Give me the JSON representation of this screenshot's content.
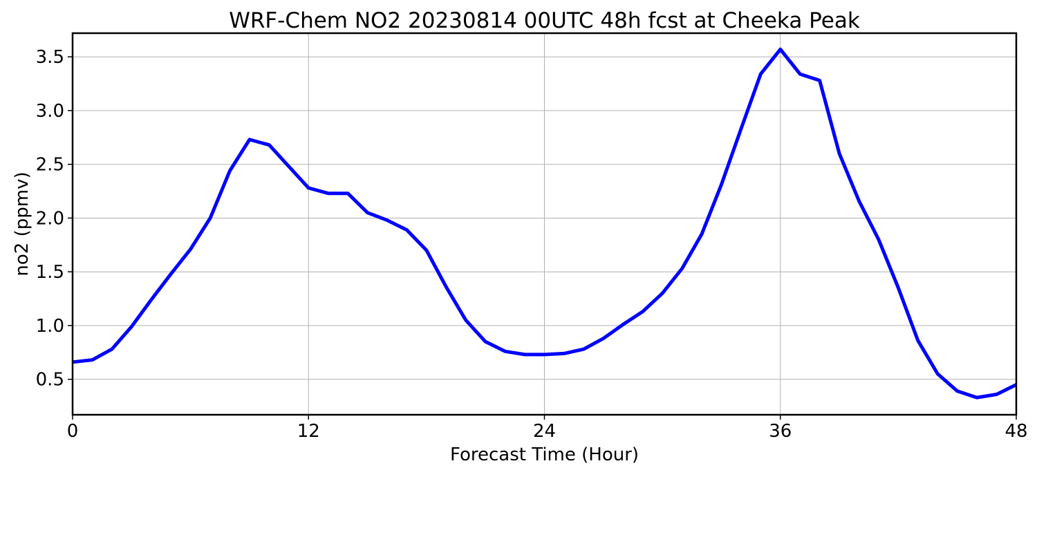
{
  "chart_data": {
    "type": "line",
    "title": "WRF-Chem NO2  20230814 00UTC 48h fcst at Cheeka Peak",
    "xlabel": "Forecast Time (Hour)",
    "ylabel": "no2  (ppmv)",
    "xlim": [
      0,
      48
    ],
    "ylim": [
      0.17,
      3.72
    ],
    "x_ticks": [
      0,
      12,
      24,
      36,
      48
    ],
    "x_tick_labels": [
      "0",
      "12",
      "24",
      "36",
      "48"
    ],
    "y_ticks": [
      0.5,
      1.0,
      1.5,
      2.0,
      2.5,
      3.0,
      3.5
    ],
    "y_tick_labels": [
      "0.5",
      "1.0",
      "1.5",
      "2.0",
      "2.5",
      "3.0",
      "3.5"
    ],
    "grid": true,
    "series": [
      {
        "color": "#0000ff",
        "x": [
          0,
          1,
          2,
          3,
          4,
          5,
          6,
          7,
          8,
          9,
          10,
          11,
          12,
          13,
          14,
          15,
          16,
          17,
          18,
          19,
          20,
          21,
          22,
          23,
          24,
          25,
          26,
          27,
          28,
          29,
          30,
          31,
          32,
          33,
          34,
          35,
          36,
          37,
          38,
          39,
          40,
          41,
          42,
          43,
          44,
          45,
          46,
          47,
          48
        ],
        "values": [
          0.66,
          0.68,
          0.78,
          0.99,
          1.24,
          1.48,
          1.71,
          2.0,
          2.44,
          2.73,
          2.68,
          2.48,
          2.28,
          2.23,
          2.23,
          2.05,
          1.98,
          1.89,
          1.7,
          1.36,
          1.05,
          0.85,
          0.76,
          0.73,
          0.73,
          0.74,
          0.78,
          0.88,
          1.01,
          1.13,
          1.3,
          1.53,
          1.85,
          2.31,
          2.83,
          3.34,
          3.57,
          3.34,
          3.28,
          2.6,
          2.16,
          1.8,
          1.35,
          0.86,
          0.55,
          0.39,
          0.33,
          0.36,
          0.45
        ]
      }
    ]
  }
}
